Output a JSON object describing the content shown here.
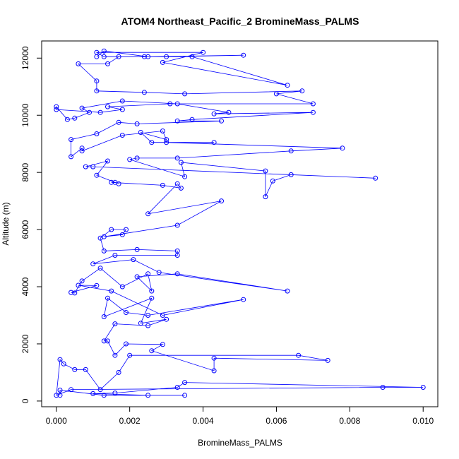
{
  "chart_data": {
    "type": "scatter",
    "title": "ATOM4 Northeast_Pacific_2 BromineMass_PALMS",
    "xlabel": "BromineMass_PALMS",
    "ylabel": "Altitude (m)",
    "xlim": [
      -0.0004,
      0.0104
    ],
    "ylim": [
      -200,
      12600
    ],
    "x_ticks": [
      0.0,
      0.002,
      0.004,
      0.006,
      0.008,
      0.01
    ],
    "x_tick_labels": [
      "0.000",
      "0.002",
      "0.004",
      "0.006",
      "0.008",
      "0.010"
    ],
    "y_ticks": [
      0,
      2000,
      4000,
      6000,
      8000,
      10000,
      12000
    ],
    "y_tick_labels": [
      "0",
      "2000",
      "4000",
      "6000",
      "8000",
      "10000",
      "12000"
    ],
    "grid": false,
    "legend": "none",
    "point_style": "open-circle connected by lines",
    "series": [
      {
        "color": "#0000ff",
        "points": [
          [
            0.0001,
            200
          ],
          [
            0.0001,
            380
          ],
          [
            0.0013,
            200
          ],
          [
            0.0035,
            200
          ],
          [
            0.0025,
            200
          ],
          [
            0.001,
            260
          ],
          [
            0.0016,
            280
          ],
          [
            0.0033,
            480
          ],
          [
            0.0035,
            650
          ],
          [
            0.01,
            480
          ],
          [
            0.0089,
            480
          ],
          [
            0.0004,
            400
          ],
          [
            0.0,
            200
          ],
          [
            0.0001,
            1450
          ],
          [
            0.0002,
            1300
          ],
          [
            0.0005,
            1100
          ],
          [
            0.0008,
            1100
          ],
          [
            0.0012,
            400
          ],
          [
            0.0017,
            1000
          ],
          [
            0.002,
            1600
          ],
          [
            0.0066,
            1600
          ],
          [
            0.0074,
            1420
          ],
          [
            0.0043,
            1500
          ],
          [
            0.0043,
            1060
          ],
          [
            0.0026,
            1760
          ],
          [
            0.0029,
            1980
          ],
          [
            0.0019,
            2000
          ],
          [
            0.0016,
            1600
          ],
          [
            0.0014,
            2100
          ],
          [
            0.0013,
            2100
          ],
          [
            0.0016,
            2700
          ],
          [
            0.0025,
            2640
          ],
          [
            0.003,
            2860
          ],
          [
            0.0023,
            2720
          ],
          [
            0.0026,
            3600
          ],
          [
            0.0013,
            2950
          ],
          [
            0.0014,
            3600
          ],
          [
            0.0019,
            3100
          ],
          [
            0.0025,
            3000
          ],
          [
            0.0051,
            3550
          ],
          [
            0.0029,
            3000
          ],
          [
            0.0015,
            3850
          ],
          [
            0.0006,
            4050
          ],
          [
            0.0011,
            4040
          ],
          [
            0.0004,
            3800
          ],
          [
            0.0005,
            3780
          ],
          [
            0.0007,
            4200
          ],
          [
            0.0012,
            4650
          ],
          [
            0.0018,
            4000
          ],
          [
            0.0025,
            4450
          ],
          [
            0.0026,
            3850
          ],
          [
            0.0022,
            4350
          ],
          [
            0.0033,
            4450
          ],
          [
            0.0063,
            3850
          ],
          [
            0.0028,
            4500
          ],
          [
            0.0021,
            4950
          ],
          [
            0.001,
            4800
          ],
          [
            0.0016,
            5100
          ],
          [
            0.0033,
            5100
          ],
          [
            0.0033,
            5250
          ],
          [
            0.0022,
            5300
          ],
          [
            0.0013,
            5250
          ],
          [
            0.0012,
            5700
          ],
          [
            0.0015,
            6000
          ],
          [
            0.0019,
            6000
          ],
          [
            0.0018,
            5820
          ],
          [
            0.0013,
            5750
          ],
          [
            0.0033,
            6150
          ],
          [
            0.0045,
            7000
          ],
          [
            0.0025,
            6550
          ],
          [
            0.0033,
            7600
          ],
          [
            0.0034,
            7450
          ],
          [
            0.0029,
            7550
          ],
          [
            0.0015,
            7650
          ],
          [
            0.0016,
            7650
          ],
          [
            0.0017,
            7600
          ],
          [
            0.0011,
            7900
          ],
          [
            0.0014,
            8400
          ],
          [
            0.0008,
            8200
          ],
          [
            0.001,
            8200
          ],
          [
            0.0087,
            7800
          ],
          [
            0.0064,
            7920
          ],
          [
            0.0059,
            7700
          ],
          [
            0.0057,
            7150
          ],
          [
            0.0057,
            8050
          ],
          [
            0.0034,
            8350
          ],
          [
            0.0035,
            7850
          ],
          [
            0.002,
            8450
          ],
          [
            0.0022,
            8500
          ],
          [
            0.0033,
            8500
          ],
          [
            0.0064,
            8750
          ],
          [
            0.0078,
            8850
          ],
          [
            0.003,
            9050
          ],
          [
            0.0043,
            9050
          ],
          [
            0.0026,
            9050
          ],
          [
            0.0023,
            9400
          ],
          [
            0.003,
            9150
          ],
          [
            0.0029,
            9450
          ],
          [
            0.0018,
            9300
          ],
          [
            0.0007,
            8750
          ],
          [
            0.0007,
            8850
          ],
          [
            0.0004,
            8550
          ],
          [
            0.0004,
            9150
          ],
          [
            0.0011,
            9350
          ],
          [
            0.0017,
            9750
          ],
          [
            0.0022,
            9700
          ],
          [
            0.0045,
            9800
          ],
          [
            0.0033,
            9800
          ],
          [
            0.0037,
            9850
          ],
          [
            0.007,
            10100
          ],
          [
            0.0043,
            10050
          ],
          [
            0.0047,
            10100
          ],
          [
            0.0033,
            10400
          ],
          [
            0.0018,
            10500
          ],
          [
            0.0007,
            10250
          ],
          [
            0.0009,
            10100
          ],
          [
            0.0005,
            9900
          ],
          [
            0.0003,
            9850
          ],
          [
            0.0,
            10300
          ],
          [
            0.0,
            10200
          ],
          [
            0.0012,
            10100
          ],
          [
            0.0018,
            10200
          ],
          [
            0.0014,
            10300
          ],
          [
            0.0031,
            10400
          ],
          [
            0.007,
            10400
          ],
          [
            0.006,
            10750
          ],
          [
            0.0067,
            10850
          ],
          [
            0.0035,
            10750
          ],
          [
            0.0024,
            10800
          ],
          [
            0.0011,
            10850
          ],
          [
            0.0011,
            11200
          ],
          [
            0.0006,
            11800
          ],
          [
            0.0014,
            11800
          ],
          [
            0.0017,
            12050
          ],
          [
            0.0024,
            12050
          ],
          [
            0.0037,
            12050
          ],
          [
            0.0063,
            11050
          ],
          [
            0.0029,
            11850
          ],
          [
            0.004,
            12200
          ],
          [
            0.0011,
            12200
          ],
          [
            0.0013,
            12050
          ],
          [
            0.003,
            12050
          ],
          [
            0.0051,
            12100
          ],
          [
            0.0025,
            12050
          ],
          [
            0.0013,
            12250
          ],
          [
            0.0011,
            12050
          ]
        ]
      }
    ]
  }
}
